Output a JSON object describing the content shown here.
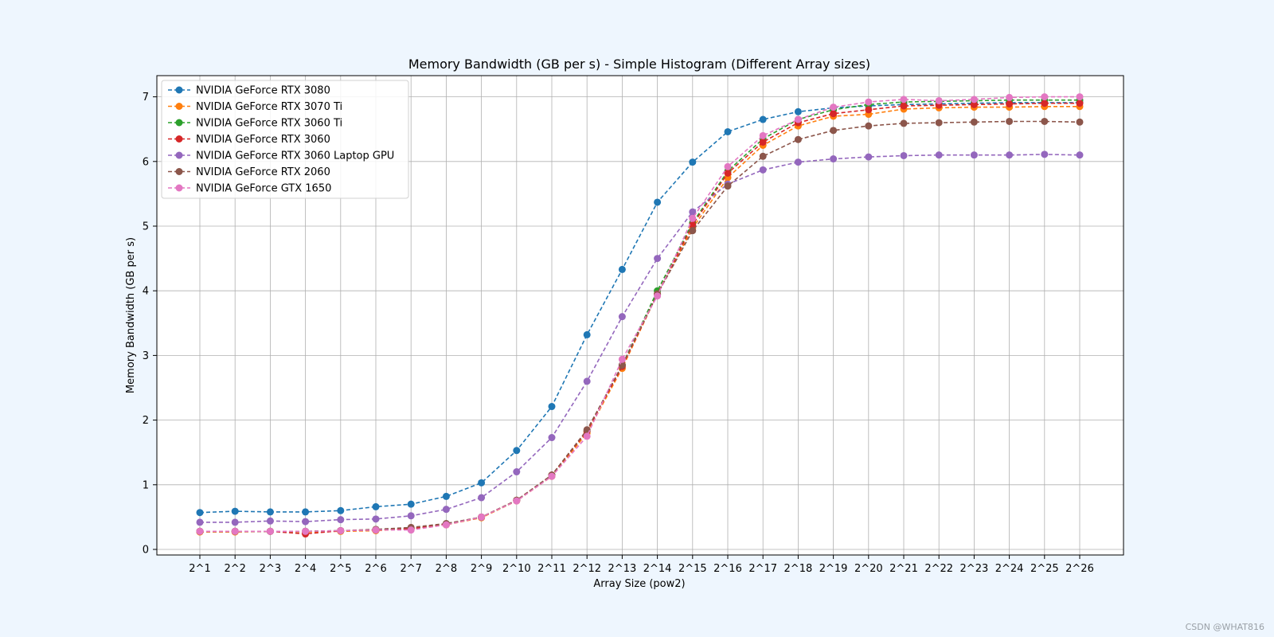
{
  "chart_data": {
    "type": "line",
    "title": "Memory Bandwidth (GB per s) - Simple Histogram (Different Array sizes)",
    "xlabel": "Array Size (pow2)",
    "ylabel": "Memory Bandwidth (GB per s)",
    "ylim": [
      -0.08,
      7.35
    ],
    "yticks": [
      0,
      1,
      2,
      3,
      4,
      5,
      6,
      7
    ],
    "grid": true,
    "legend_position": "upper left",
    "line_style": "dashed with circle markers",
    "categories": [
      "2^1",
      "2^2",
      "2^3",
      "2^4",
      "2^5",
      "2^6",
      "2^7",
      "2^8",
      "2^9",
      "2^10",
      "2^11",
      "2^12",
      "2^13",
      "2^14",
      "2^15",
      "2^16",
      "2^17",
      "2^18",
      "2^19",
      "2^20",
      "2^21",
      "2^22",
      "2^23",
      "2^24",
      "2^25",
      "2^26"
    ],
    "series": [
      {
        "name": "NVIDIA GeForce RTX 3080",
        "color": "#1f77b4",
        "values": [
          0.57,
          0.59,
          0.58,
          0.58,
          0.6,
          0.66,
          0.7,
          0.82,
          1.03,
          1.53,
          2.21,
          3.32,
          4.33,
          5.37,
          5.99,
          6.46,
          6.65,
          6.77,
          6.83,
          6.86,
          6.88,
          6.89,
          6.9,
          6.91,
          6.91,
          6.91
        ]
      },
      {
        "name": "NVIDIA GeForce RTX 3070 Ti",
        "color": "#ff7f0e",
        "values": [
          0.27,
          0.27,
          0.28,
          0.27,
          0.28,
          0.29,
          0.32,
          0.38,
          0.49,
          0.75,
          1.13,
          1.8,
          2.8,
          3.95,
          4.97,
          5.75,
          6.25,
          6.55,
          6.7,
          6.73,
          6.81,
          6.83,
          6.84,
          6.84,
          6.85,
          6.85
        ]
      },
      {
        "name": "NVIDIA GeForce RTX 3060 Ti",
        "color": "#2ca02c",
        "values": [
          0.28,
          0.28,
          0.28,
          0.28,
          0.29,
          0.3,
          0.32,
          0.39,
          0.5,
          0.76,
          1.15,
          1.83,
          2.85,
          4.0,
          5.05,
          5.85,
          6.35,
          6.65,
          6.8,
          6.88,
          6.92,
          6.93,
          6.94,
          6.95,
          6.95,
          6.95
        ]
      },
      {
        "name": "NVIDIA GeForce RTX 3060",
        "color": "#d62728",
        "values": [
          0.28,
          0.28,
          0.28,
          0.24,
          0.29,
          0.3,
          0.32,
          0.39,
          0.5,
          0.76,
          1.15,
          1.83,
          2.83,
          3.95,
          5.02,
          5.82,
          6.3,
          6.6,
          6.74,
          6.8,
          6.86,
          6.87,
          6.88,
          6.89,
          6.9,
          6.9
        ]
      },
      {
        "name": "NVIDIA GeForce RTX 3060 Laptop GPU",
        "color": "#9467bd",
        "values": [
          0.42,
          0.42,
          0.44,
          0.43,
          0.46,
          0.47,
          0.52,
          0.62,
          0.8,
          1.2,
          1.73,
          2.6,
          3.6,
          4.5,
          5.22,
          5.65,
          5.87,
          5.99,
          6.04,
          6.07,
          6.09,
          6.1,
          6.1,
          6.1,
          6.11,
          6.1
        ]
      },
      {
        "name": "NVIDIA GeForce RTX 2060",
        "color": "#8c564b",
        "values": [
          0.28,
          0.28,
          0.28,
          0.28,
          0.29,
          0.31,
          0.34,
          0.4,
          0.5,
          0.76,
          1.15,
          1.85,
          2.85,
          3.95,
          4.93,
          5.62,
          6.08,
          6.34,
          6.48,
          6.55,
          6.59,
          6.6,
          6.61,
          6.62,
          6.62,
          6.61
        ]
      },
      {
        "name": "NVIDIA GeForce GTX 1650",
        "color": "#e377c2",
        "values": [
          0.28,
          0.28,
          0.28,
          0.28,
          0.29,
          0.3,
          0.3,
          0.38,
          0.5,
          0.75,
          1.13,
          1.75,
          2.94,
          3.92,
          5.12,
          5.92,
          6.4,
          6.65,
          6.84,
          6.92,
          6.96,
          6.94,
          6.96,
          6.99,
          7.0,
          7.0
        ]
      }
    ]
  },
  "watermark": "CSDN @WHAT816"
}
